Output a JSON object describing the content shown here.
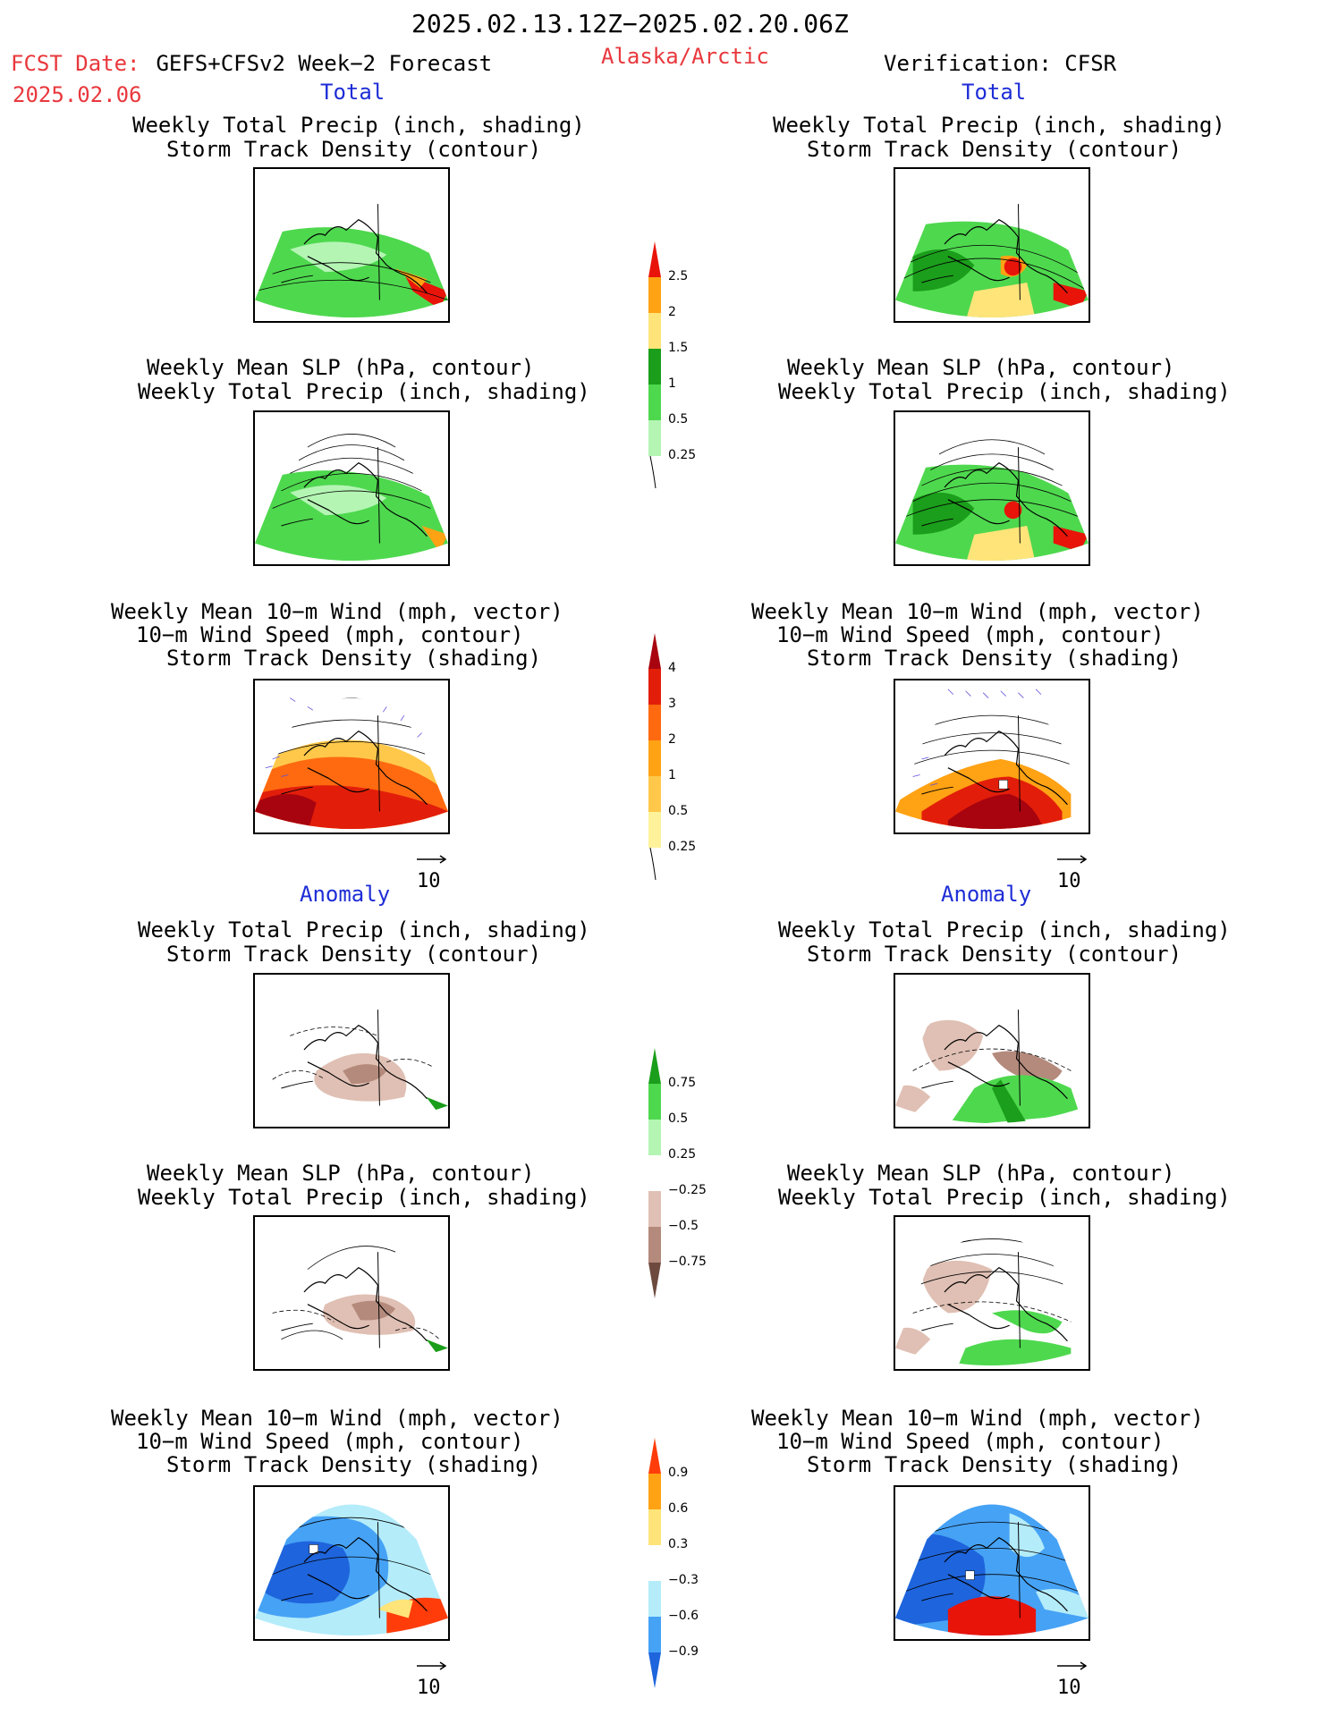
{
  "header": {
    "date_range": "2025.02.13.12Z−2025.02.20.06Z",
    "fcst_label": "FCST Date:",
    "fcst_model": " GEFS+CFSv2 Week−2 Forecast",
    "fcst_date": "2025.02.06",
    "region": "Alaska/Arctic",
    "verification": "Verification: CFSR"
  },
  "sections": {
    "total": "Total",
    "anomaly": "Anomaly"
  },
  "titles": {
    "precip_track_1": "Weekly Total Precip (inch, shading)",
    "precip_track_2": "Storm Track Density (contour)",
    "slp_precip_1": "Weekly Mean SLP (hPa, contour)",
    "slp_precip_2": "Weekly Total Precip (inch, shading)",
    "wind_1": "Weekly Mean 10−m Wind (mph, vector)",
    "wind_2": "10−m Wind Speed (mph, contour)",
    "wind_3": "Storm Track Density (shading)"
  },
  "vector_key": "10",
  "colorbars": {
    "precip_total": {
      "labels": [
        "2.5",
        "2",
        "1.5",
        "1",
        "0.5",
        "0.25"
      ],
      "colors": [
        "#e8140a",
        "#ffa214",
        "#ffe47a",
        "#1b9e1b",
        "#4ed84e",
        "#b4f5b4"
      ]
    },
    "track_total": {
      "labels": [
        "4",
        "3",
        "2",
        "1",
        "0.5",
        "0.25"
      ],
      "colors": [
        "#a8040f",
        "#e21e0a",
        "#ff6a10",
        "#ffa214",
        "#ffc84a",
        "#fff29a"
      ]
    },
    "precip_anom": {
      "labels": [
        "0.75",
        "0.5",
        "0.25",
        "−0.25",
        "−0.5",
        "−0.75"
      ],
      "colors": [
        "#1b9e1b",
        "#4ed84e",
        "#b4f5b4",
        "#ffffff",
        "#e0c0b4",
        "#b48a7c",
        "#6e4a3e"
      ]
    },
    "track_anom": {
      "labels": [
        "0.9",
        "0.6",
        "0.3",
        "−0.3",
        "−0.6",
        "−0.9"
      ],
      "colors": [
        "#ff3c0a",
        "#ffa214",
        "#ffe47a",
        "#ffffff",
        "#b4ecfa",
        "#46a2f5",
        "#1e64dc"
      ]
    }
  }
}
